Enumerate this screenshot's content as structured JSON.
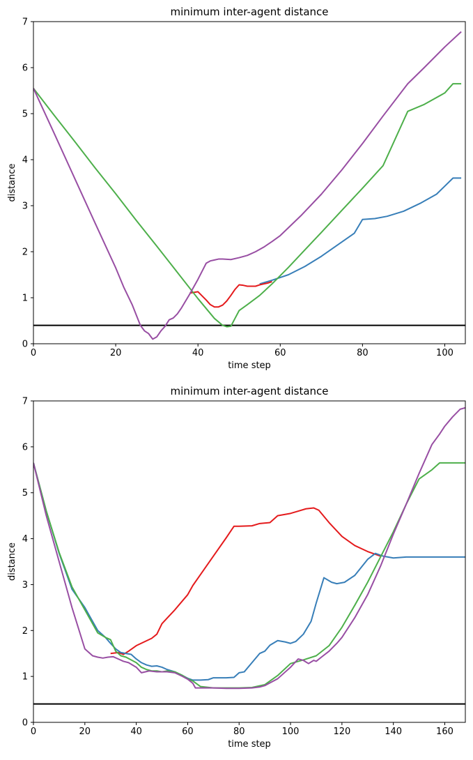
{
  "chart_data": [
    {
      "type": "line",
      "title": "minimum inter-agent distance",
      "xlabel": "time step",
      "ylabel": "distance",
      "xlim": [
        0,
        105
      ],
      "ylim": [
        0,
        7
      ],
      "xticks": [
        0,
        20,
        40,
        60,
        80,
        100
      ],
      "yticks": [
        0,
        1,
        2,
        3,
        4,
        5,
        6,
        7
      ],
      "grid": false,
      "threshold": 0.4,
      "threshold_color": "#000000",
      "series": [
        {
          "color": "#377eb8",
          "x": [
            55,
            58,
            62,
            66,
            70,
            74,
            78,
            80,
            83,
            86,
            90,
            94,
            98,
            102,
            104
          ],
          "y": [
            1.3,
            1.38,
            1.5,
            1.68,
            1.9,
            2.15,
            2.4,
            2.7,
            2.72,
            2.77,
            2.88,
            3.05,
            3.25,
            3.6,
            3.6
          ]
        },
        {
          "color": "#e41a1c",
          "x": [
            38,
            40,
            42,
            43,
            44,
            45,
            46,
            47,
            48,
            49,
            50,
            51,
            52,
            53,
            54,
            55,
            56,
            57,
            58
          ],
          "y": [
            1.1,
            1.13,
            0.95,
            0.85,
            0.8,
            0.8,
            0.84,
            0.93,
            1.05,
            1.18,
            1.28,
            1.27,
            1.25,
            1.25,
            1.25,
            1.28,
            1.3,
            1.32,
            1.35
          ]
        },
        {
          "color": "#4daf4a",
          "x": [
            0,
            5,
            10,
            15,
            20,
            25,
            30,
            35,
            40,
            44,
            46,
            47,
            48,
            49,
            50,
            52,
            55,
            58,
            62,
            66,
            70,
            75,
            80,
            85,
            91,
            95,
            100,
            102,
            104
          ],
          "y": [
            5.55,
            4.97,
            4.4,
            3.82,
            3.26,
            2.68,
            2.12,
            1.55,
            0.98,
            0.55,
            0.4,
            0.37,
            0.38,
            0.55,
            0.72,
            0.85,
            1.05,
            1.3,
            1.66,
            2.04,
            2.42,
            2.9,
            3.38,
            3.87,
            5.05,
            5.2,
            5.45,
            5.65,
            5.65
          ]
        },
        {
          "color": "#984ea3",
          "x": [
            0,
            5,
            10,
            15,
            20,
            22,
            24,
            26,
            27,
            28,
            29,
            30,
            31,
            32,
            33,
            34,
            35,
            36,
            38,
            40,
            42,
            43,
            44,
            45,
            46,
            48,
            50,
            52,
            54,
            56,
            58,
            60,
            65,
            70,
            75,
            80,
            85,
            91,
            95,
            100,
            104
          ],
          "y": [
            5.55,
            4.58,
            3.6,
            2.62,
            1.65,
            1.22,
            0.85,
            0.4,
            0.28,
            0.22,
            0.1,
            0.15,
            0.28,
            0.38,
            0.52,
            0.56,
            0.65,
            0.78,
            1.08,
            1.4,
            1.75,
            1.8,
            1.82,
            1.84,
            1.84,
            1.83,
            1.87,
            1.92,
            2.0,
            2.1,
            2.22,
            2.35,
            2.78,
            3.25,
            3.78,
            4.35,
            4.95,
            5.65,
            6.0,
            6.45,
            6.78
          ]
        }
      ]
    },
    {
      "type": "line",
      "title": "minimum inter-agent distance",
      "xlabel": "time step",
      "ylabel": "distance",
      "xlim": [
        0,
        168
      ],
      "ylim": [
        0,
        7
      ],
      "xticks": [
        0,
        20,
        40,
        60,
        80,
        100,
        120,
        140,
        160
      ],
      "yticks": [
        0,
        1,
        2,
        3,
        4,
        5,
        6,
        7
      ],
      "grid": false,
      "threshold": 0.4,
      "threshold_color": "#000000",
      "series": [
        {
          "color": "#e41a1c",
          "x": [
            30,
            33,
            35,
            37,
            40,
            43,
            46,
            48,
            50,
            55,
            60,
            62,
            65,
            70,
            75,
            78,
            80,
            85,
            88,
            92,
            95,
            100,
            103,
            106,
            109,
            111,
            115,
            120,
            125,
            130,
            135
          ],
          "y": [
            1.5,
            1.52,
            1.48,
            1.55,
            1.67,
            1.75,
            1.83,
            1.92,
            2.15,
            2.45,
            2.78,
            2.98,
            3.22,
            3.62,
            4.02,
            4.27,
            4.27,
            4.28,
            4.33,
            4.35,
            4.5,
            4.55,
            4.6,
            4.65,
            4.67,
            4.62,
            4.35,
            4.05,
            3.85,
            3.72,
            3.62
          ]
        },
        {
          "color": "#377eb8",
          "x": [
            0,
            5,
            10,
            15,
            20,
            25,
            28,
            30,
            32,
            34,
            36,
            38,
            40,
            42,
            44,
            46,
            48,
            50,
            52,
            55,
            58,
            60,
            62,
            65,
            68,
            70,
            75,
            78,
            80,
            82,
            85,
            88,
            90,
            92,
            95,
            98,
            100,
            102,
            105,
            108,
            110,
            113,
            116,
            118,
            121,
            125,
            130,
            133,
            136,
            140,
            145,
            150,
            160,
            168
          ],
          "y": [
            5.65,
            4.6,
            3.68,
            2.9,
            2.5,
            2.0,
            1.85,
            1.72,
            1.6,
            1.52,
            1.5,
            1.48,
            1.38,
            1.3,
            1.25,
            1.22,
            1.23,
            1.2,
            1.15,
            1.1,
            1.02,
            0.96,
            0.92,
            0.92,
            0.93,
            0.97,
            0.97,
            0.98,
            1.08,
            1.1,
            1.3,
            1.5,
            1.55,
            1.68,
            1.78,
            1.75,
            1.72,
            1.76,
            1.92,
            2.2,
            2.6,
            3.15,
            3.05,
            3.02,
            3.05,
            3.2,
            3.55,
            3.68,
            3.62,
            3.58,
            3.6,
            3.6,
            3.6,
            3.6
          ]
        },
        {
          "color": "#4daf4a",
          "x": [
            0,
            5,
            10,
            15,
            20,
            25,
            28,
            30,
            32,
            34,
            36,
            40,
            42,
            44,
            46,
            48,
            50,
            52,
            55,
            58,
            60,
            62,
            65,
            70,
            75,
            80,
            85,
            90,
            95,
            100,
            105,
            110,
            115,
            120,
            125,
            130,
            135,
            140,
            145,
            150,
            155,
            158,
            160,
            168
          ],
          "y": [
            5.65,
            4.6,
            3.7,
            2.95,
            2.45,
            1.95,
            1.85,
            1.8,
            1.55,
            1.45,
            1.42,
            1.3,
            1.2,
            1.15,
            1.12,
            1.12,
            1.1,
            1.12,
            1.1,
            1.02,
            0.95,
            0.9,
            0.78,
            0.75,
            0.75,
            0.75,
            0.76,
            0.82,
            1.02,
            1.28,
            1.36,
            1.45,
            1.67,
            2.07,
            2.55,
            3.05,
            3.6,
            4.15,
            4.75,
            5.3,
            5.5,
            5.65,
            5.65,
            5.65
          ]
        },
        {
          "color": "#984ea3",
          "x": [
            0,
            5,
            10,
            15,
            20,
            23,
            25,
            27,
            29,
            31,
            33,
            35,
            37,
            40,
            42,
            45,
            48,
            50,
            52,
            55,
            58,
            60,
            62,
            63,
            65,
            70,
            75,
            80,
            85,
            88,
            90,
            92,
            95,
            98,
            100,
            103,
            105,
            107,
            109,
            110,
            112,
            115,
            118,
            120,
            125,
            130,
            135,
            140,
            145,
            150,
            155,
            158,
            160,
            163,
            166,
            168
          ],
          "y": [
            5.65,
            4.5,
            3.5,
            2.5,
            1.6,
            1.45,
            1.42,
            1.4,
            1.42,
            1.43,
            1.38,
            1.33,
            1.3,
            1.2,
            1.08,
            1.12,
            1.1,
            1.1,
            1.1,
            1.08,
            1.0,
            0.94,
            0.85,
            0.75,
            0.75,
            0.75,
            0.74,
            0.74,
            0.75,
            0.77,
            0.8,
            0.86,
            0.95,
            1.1,
            1.2,
            1.38,
            1.35,
            1.28,
            1.35,
            1.33,
            1.42,
            1.55,
            1.72,
            1.85,
            2.28,
            2.78,
            3.4,
            4.1,
            4.75,
            5.42,
            6.05,
            6.28,
            6.45,
            6.65,
            6.82,
            6.85
          ]
        }
      ]
    }
  ]
}
